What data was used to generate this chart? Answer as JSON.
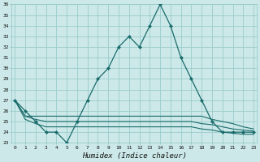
{
  "title": "",
  "xlabel": "Humidex (Indice chaleur)",
  "ylabel": "",
  "background_color": "#cce8e8",
  "grid_color": "#99cccc",
  "line_color": "#1a6b6b",
  "x": [
    0,
    1,
    2,
    3,
    4,
    5,
    6,
    7,
    8,
    9,
    10,
    11,
    12,
    13,
    14,
    15,
    16,
    17,
    18,
    19,
    20,
    21,
    22,
    23
  ],
  "series1": [
    27,
    26,
    25,
    24,
    24,
    23,
    25,
    27,
    29,
    30,
    32,
    33,
    32,
    34,
    36,
    34,
    31,
    29,
    27,
    25,
    24,
    24,
    24,
    24
  ],
  "series2": [
    27,
    25.5,
    25.5,
    25.5,
    25.5,
    25.5,
    25.5,
    25.5,
    25.5,
    25.5,
    25.5,
    25.5,
    25.5,
    25.5,
    25.5,
    25.5,
    25.5,
    25.5,
    25.5,
    25.2,
    25.0,
    24.8,
    24.5,
    24.3
  ],
  "series3": [
    27,
    25.5,
    25.2,
    25.0,
    25.0,
    25.0,
    25.0,
    25.0,
    25.0,
    25.0,
    25.0,
    25.0,
    25.0,
    25.0,
    25.0,
    25.0,
    25.0,
    25.0,
    24.8,
    24.7,
    24.5,
    24.3,
    24.2,
    24.1
  ],
  "series4": [
    27,
    25.2,
    24.8,
    24.5,
    24.5,
    24.5,
    24.5,
    24.5,
    24.5,
    24.5,
    24.5,
    24.5,
    24.5,
    24.5,
    24.5,
    24.5,
    24.5,
    24.5,
    24.3,
    24.2,
    24.0,
    23.9,
    23.8,
    23.8
  ],
  "ylim": [
    23,
    36
  ],
  "yticks": [
    23,
    24,
    25,
    26,
    27,
    28,
    29,
    30,
    31,
    32,
    33,
    34,
    35,
    36
  ],
  "xticks": [
    0,
    1,
    2,
    3,
    4,
    5,
    6,
    7,
    8,
    9,
    10,
    11,
    12,
    13,
    14,
    15,
    16,
    17,
    18,
    19,
    20,
    21,
    22,
    23
  ]
}
